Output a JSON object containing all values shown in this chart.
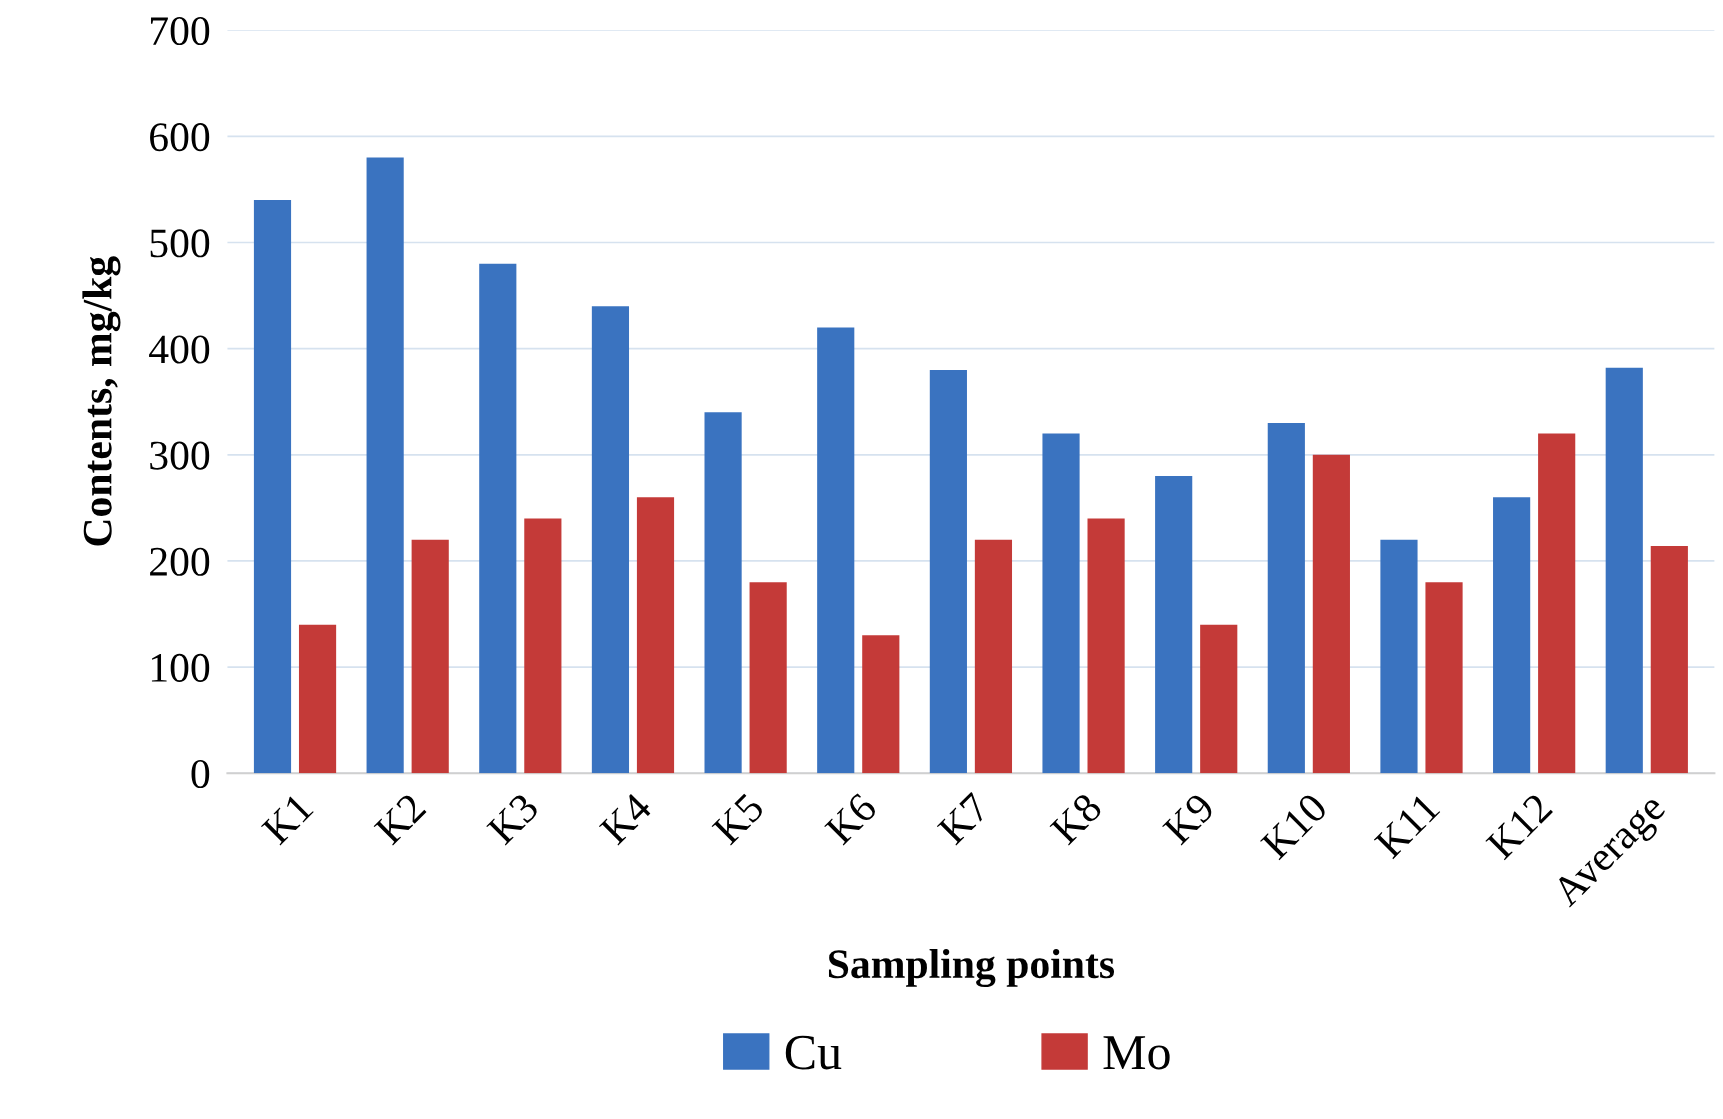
{
  "chart_data": {
    "type": "bar",
    "xlabel": "Sampling points",
    "ylabel": "Contents, mg/kg",
    "categories": [
      "K1",
      "K2",
      "K3",
      "K4",
      "K5",
      "K6",
      "K7",
      "K8",
      "K9",
      "K10",
      "K11",
      "K12",
      "Average"
    ],
    "series": [
      {
        "name": "Cu",
        "color": "#3a73c0",
        "values": [
          540,
          580,
          480,
          440,
          340,
          420,
          380,
          320,
          280,
          330,
          220,
          260,
          382
        ]
      },
      {
        "name": "Mo",
        "color": "#c43a38",
        "values": [
          140,
          220,
          240,
          260,
          180,
          130,
          220,
          240,
          140,
          300,
          180,
          320,
          214
        ]
      }
    ],
    "ylim": [
      0,
      700
    ],
    "yticks": [
      0,
      100,
      200,
      300,
      400,
      500,
      600,
      700
    ],
    "grid": "y",
    "legend": "bottom"
  }
}
